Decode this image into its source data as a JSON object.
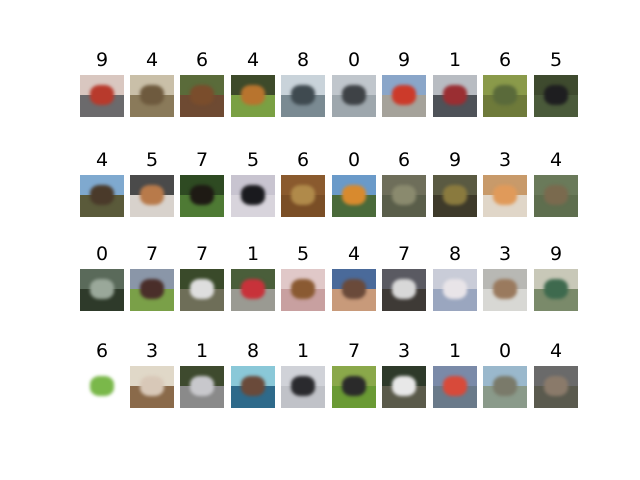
{
  "labels": [
    [
      "9",
      "4",
      "6",
      "4",
      "8",
      "0",
      "9",
      "1",
      "6",
      "5"
    ],
    [
      "4",
      "5",
      "7",
      "5",
      "6",
      "0",
      "6",
      "9",
      "3",
      "4"
    ],
    [
      "0",
      "7",
      "7",
      "1",
      "5",
      "4",
      "7",
      "8",
      "3",
      "9"
    ],
    [
      "6",
      "3",
      "1",
      "8",
      "1",
      "7",
      "3",
      "1",
      "0",
      "4"
    ]
  ],
  "thumbnails": [
    [
      {
        "depicts": "truck",
        "top": "#d9c7c0",
        "bottom": "#6b6a6c",
        "subject": "#b83a2c"
      },
      {
        "depicts": "deer",
        "top": "#c9bfa8",
        "bottom": "#8a7a5a",
        "subject": "#6e5a3e"
      },
      {
        "depicts": "frog",
        "top": "#5a6b3a",
        "bottom": "#6e4a32",
        "subject": "#7a4d2c"
      },
      {
        "depicts": "deer",
        "top": "#3d4a2a",
        "bottom": "#7aa043",
        "subject": "#b8742e"
      },
      {
        "depicts": "ship",
        "top": "#c9d3da",
        "bottom": "#7a8a92",
        "subject": "#3f4a50"
      },
      {
        "depicts": "airplane",
        "top": "#c0c6cc",
        "bottom": "#9ea7ad",
        "subject": "#3e4246"
      },
      {
        "depicts": "truck",
        "top": "#8aa6c9",
        "bottom": "#a5a29a",
        "subject": "#cc3a2a"
      },
      {
        "depicts": "automobile",
        "top": "#b8bcc2",
        "bottom": "#4e5258",
        "subject": "#9a2e32"
      },
      {
        "depicts": "frog",
        "top": "#8a9a4a",
        "bottom": "#6e7a3a",
        "subject": "#5a6a3a"
      },
      {
        "depicts": "dog",
        "top": "#3e4a2e",
        "bottom": "#4a5a3a",
        "subject": "#1e1e20"
      }
    ],
    [
      {
        "depicts": "deer",
        "top": "#7fa9cf",
        "bottom": "#5a5a3a",
        "subject": "#4a3a2a"
      },
      {
        "depicts": "dog",
        "top": "#4a4a4a",
        "bottom": "#d8d2cc",
        "subject": "#b87a4a"
      },
      {
        "depicts": "horse",
        "top": "#2e4a22",
        "bottom": "#4e7a34",
        "subject": "#1e1a14"
      },
      {
        "depicts": "dog",
        "top": "#c8c4d0",
        "bottom": "#d8d4dc",
        "subject": "#1a1a1e"
      },
      {
        "depicts": "frog",
        "top": "#8a5a2e",
        "bottom": "#7a4e26",
        "subject": "#b08a4a"
      },
      {
        "depicts": "airplane",
        "top": "#6a9ac9",
        "bottom": "#4a6a3a",
        "subject": "#d88a2e"
      },
      {
        "depicts": "frog",
        "top": "#6e6e5a",
        "bottom": "#5a5e4a",
        "subject": "#8a8a6e"
      },
      {
        "depicts": "truck",
        "top": "#5a5a42",
        "bottom": "#3e3a2a",
        "subject": "#8a7a3e"
      },
      {
        "depicts": "cat",
        "top": "#c89a6a",
        "bottom": "#e0d6c8",
        "subject": "#e09a5a"
      },
      {
        "depicts": "deer",
        "top": "#6a7a5a",
        "bottom": "#5e6e4e",
        "subject": "#7a6a4e"
      }
    ],
    [
      {
        "depicts": "airplane",
        "top": "#5a6a5a",
        "bottom": "#2e3a2a",
        "subject": "#9aa89a"
      },
      {
        "depicts": "horse",
        "top": "#8a96a8",
        "bottom": "#7aa048",
        "subject": "#4a2e2a"
      },
      {
        "depicts": "horse",
        "top": "#3a4a2a",
        "bottom": "#6e6e58",
        "subject": "#dedede"
      },
      {
        "depicts": "automobile",
        "top": "#4a5e3a",
        "bottom": "#9a9a92",
        "subject": "#c8323a"
      },
      {
        "depicts": "dog",
        "top": "#e0c8c8",
        "bottom": "#c8a0a0",
        "subject": "#8a5a32"
      },
      {
        "depicts": "deer",
        "top": "#4a6a9a",
        "bottom": "#c89a7a",
        "subject": "#6a4a3a"
      },
      {
        "depicts": "horse",
        "top": "#5a5a62",
        "bottom": "#3e3a36",
        "subject": "#d8d8d8"
      },
      {
        "depicts": "ship",
        "top": "#c9ccd8",
        "bottom": "#9aa6bf",
        "subject": "#e8e4e8"
      },
      {
        "depicts": "cat",
        "top": "#b8b8b4",
        "bottom": "#d8d8d4",
        "subject": "#9a7a5e"
      },
      {
        "depicts": "truck",
        "top": "#c8c8b8",
        "bottom": "#7a8a6a",
        "subject": "#3e6a4e"
      }
    ],
    [
      {
        "depicts": "frog",
        "top": "#ffffff",
        "bottom": "#ffffff",
        "subject": "#7ab84a"
      },
      {
        "depicts": "cat",
        "top": "#e0d8c8",
        "bottom": "#8a6a4a",
        "subject": "#d8c8b8"
      },
      {
        "depicts": "automobile",
        "top": "#3e4a2e",
        "bottom": "#8a8a8a",
        "subject": "#c8c8cc"
      },
      {
        "depicts": "ship",
        "top": "#8ac8d8",
        "bottom": "#2e6a8a",
        "subject": "#6a4a3a"
      },
      {
        "depicts": "automobile",
        "top": "#d0d2d8",
        "bottom": "#c0c2c8",
        "subject": "#2a2a2e"
      },
      {
        "depicts": "horse",
        "top": "#8aa84a",
        "bottom": "#6a9a34",
        "subject": "#2a2a2a"
      },
      {
        "depicts": "cat",
        "top": "#2e3a2a",
        "bottom": "#5a5a4a",
        "subject": "#e8e8e8"
      },
      {
        "depicts": "automobile",
        "top": "#7a8aa8",
        "bottom": "#6a7a8a",
        "subject": "#d84a3a"
      },
      {
        "depicts": "airplane",
        "top": "#9ab8cc",
        "bottom": "#8a9a8a",
        "subject": "#7a7a6a"
      },
      {
        "depicts": "deer",
        "top": "#6a6a6a",
        "bottom": "#5a5a4e",
        "subject": "#8a7a6a"
      }
    ]
  ]
}
